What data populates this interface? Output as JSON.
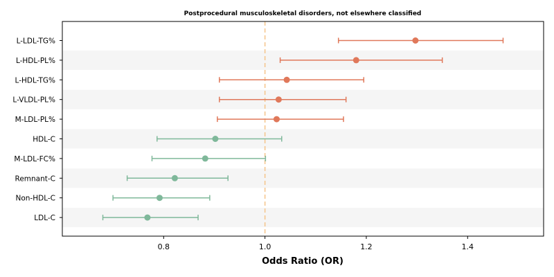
{
  "chart_data": {
    "type": "forest",
    "title": "Postprocedural musculoskeletal disorders, not elsewhere classified",
    "xlabel": "Odds Ratio (OR)",
    "ylabel": "",
    "xlim": [
      0.6,
      1.55
    ],
    "xticks": [
      0.8,
      1.0,
      1.2,
      1.4
    ],
    "reference_line": 1.0,
    "grid": false,
    "band_color": "#f5f5f5",
    "reference_color": "#f5c48a",
    "colors": {
      "above": "#e0785a",
      "below": "#7fb89a"
    },
    "rows": [
      {
        "label": "L-LDL-TG%",
        "or": 1.297,
        "lower": 1.145,
        "upper": 1.47,
        "group": "above"
      },
      {
        "label": "L-HDL-PL%",
        "or": 1.18,
        "lower": 1.03,
        "upper": 1.35,
        "group": "above"
      },
      {
        "label": "L-HDL-TG%",
        "or": 1.043,
        "lower": 0.91,
        "upper": 1.195,
        "group": "above"
      },
      {
        "label": "L-VLDL-PL%",
        "or": 1.027,
        "lower": 0.91,
        "upper": 1.16,
        "group": "above"
      },
      {
        "label": "M-LDL-PL%",
        "or": 1.023,
        "lower": 0.906,
        "upper": 1.155,
        "group": "above"
      },
      {
        "label": "HDL-C",
        "or": 0.902,
        "lower": 0.787,
        "upper": 1.033,
        "group": "below"
      },
      {
        "label": "M-LDL-FC%",
        "or": 0.882,
        "lower": 0.777,
        "upper": 1.001,
        "group": "below"
      },
      {
        "label": "Remnant-C",
        "or": 0.822,
        "lower": 0.728,
        "upper": 0.927,
        "group": "below"
      },
      {
        "label": "Non-HDL-C",
        "or": 0.792,
        "lower": 0.7,
        "upper": 0.891,
        "group": "below"
      },
      {
        "label": "LDL-C",
        "or": 0.768,
        "lower": 0.68,
        "upper": 0.868,
        "group": "below"
      }
    ]
  }
}
